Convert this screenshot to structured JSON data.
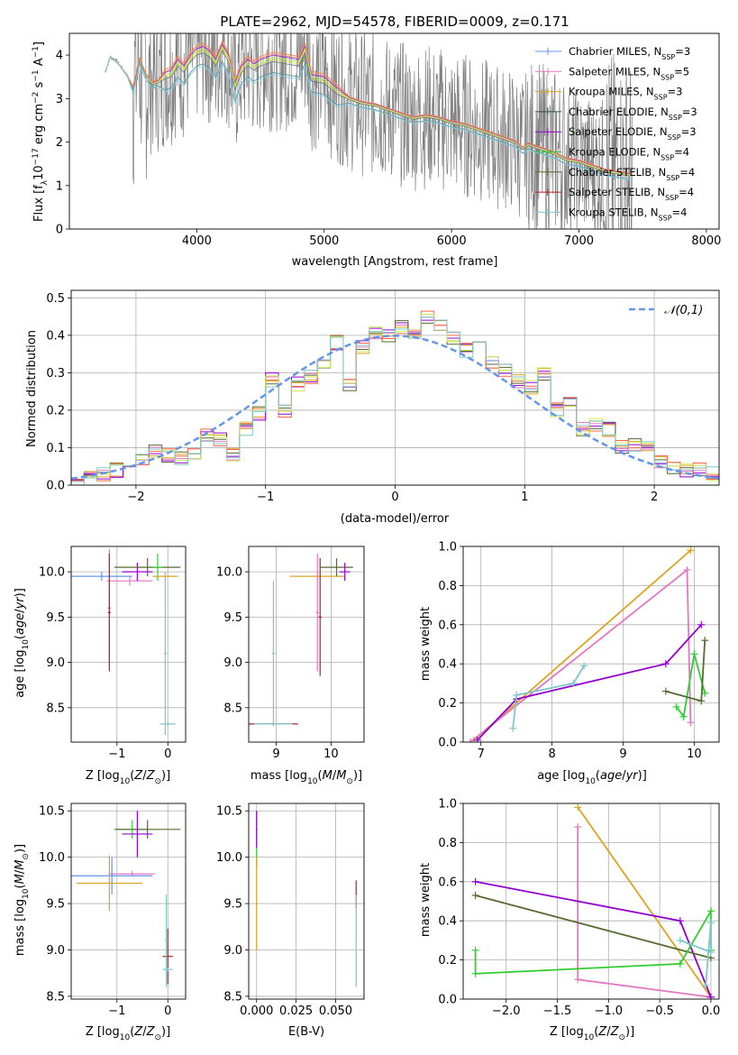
{
  "figure_title": "PLATE=2962, MJD=54578, FIBERID=0009, z=0.171",
  "colors": {
    "data": "#7f7f7f",
    "gauss": "#6495ed",
    "series": [
      "#6495ed",
      "#e377c2",
      "#daa520",
      "#2f4f4f",
      "#9400d3",
      "#32cd32",
      "#556b2f",
      "#b22222",
      "#7fc7c7"
    ]
  },
  "chart_data": [
    {
      "id": "spectrum",
      "type": "line",
      "title": "PLATE=2962, MJD=54578, FIBERID=0009, z=0.171",
      "xlabel": "wavelength [Angstrom, rest frame]",
      "ylabel": "Flux [f_λ 10^-17 erg cm^-2 s^-1 A^-1]",
      "xlim": [
        3000,
        8100
      ],
      "ylim": [
        0,
        4.5
      ],
      "xticks": [
        4000,
        5000,
        6000,
        7000,
        8000
      ],
      "yticks": [
        0,
        1,
        2,
        3,
        4
      ],
      "grid": false,
      "legend_position": "top-right",
      "legend": [
        "Chabrier MILES, N_SSP=3",
        "Salpeter MILES, N_SSP=5",
        "Kroupa MILES, N_SSP=3",
        "Chabrier ELODIE, N_SSP=3",
        "Salpeter ELODIE, N_SSP=3",
        "Kroupa ELODIE, N_SSP=4",
        "Chabrier STELIB, N_SSP=4",
        "Salpeter STELIB, N_SSP=4",
        "Kroupa STELIB, N_SSP=4"
      ],
      "data_range": [
        3280,
        7420
      ],
      "model_curve": {
        "x": [
          3280,
          3320,
          3360,
          3400,
          3450,
          3500,
          3550,
          3600,
          3650,
          3700,
          3750,
          3800,
          3850,
          3900,
          3950,
          4000,
          4050,
          4100,
          4150,
          4200,
          4250,
          4300,
          4350,
          4400,
          4450,
          4500,
          4600,
          4700,
          4800,
          4850,
          4900,
          5000,
          5100,
          5200,
          5300,
          5400,
          5500,
          5600,
          5700,
          5800,
          5900,
          6000,
          6100,
          6200,
          6300,
          6400,
          6500,
          6560,
          6600,
          6700,
          6800,
          6900,
          7000,
          7100,
          7200,
          7300,
          7400
        ],
        "y": [
          3.6,
          3.95,
          3.9,
          3.75,
          3.55,
          3.25,
          3.9,
          3.55,
          3.35,
          3.4,
          3.55,
          3.6,
          3.85,
          3.7,
          3.95,
          4.1,
          4.15,
          4.05,
          3.85,
          4.2,
          3.95,
          3.3,
          3.7,
          3.85,
          3.75,
          3.85,
          3.95,
          3.9,
          3.85,
          4.15,
          3.5,
          3.45,
          3.2,
          3.0,
          2.9,
          2.85,
          2.75,
          2.65,
          2.55,
          2.6,
          2.55,
          2.45,
          2.4,
          2.3,
          2.2,
          2.1,
          2.0,
          1.85,
          1.95,
          1.85,
          1.75,
          1.6,
          1.55,
          1.45,
          1.35,
          1.3,
          1.25
        ]
      }
    },
    {
      "id": "residuals",
      "type": "line",
      "xlabel": "(data-model)/error",
      "ylabel": "Normed distribution",
      "xlim": [
        -2.5,
        2.5
      ],
      "ylim": [
        0,
        0.52
      ],
      "xticks": [
        -2,
        -1,
        0,
        1,
        2
      ],
      "yticks": [
        0.0,
        0.1,
        0.2,
        0.3,
        0.4,
        0.5
      ],
      "grid": true,
      "legend_position": "top-right",
      "legend": [
        "𝒩(0,1)"
      ],
      "bin_edges": [
        -2.5,
        -2.4,
        -2.3,
        -2.2,
        -2.1,
        -2.0,
        -1.9,
        -1.8,
        -1.7,
        -1.6,
        -1.5,
        -1.4,
        -1.3,
        -1.2,
        -1.1,
        -1.0,
        -0.9,
        -0.8,
        -0.7,
        -0.6,
        -0.5,
        -0.4,
        -0.3,
        -0.2,
        -0.1,
        0.0,
        0.1,
        0.2,
        0.3,
        0.4,
        0.5,
        0.6,
        0.7,
        0.8,
        0.9,
        1.0,
        1.1,
        1.2,
        1.3,
        1.4,
        1.5,
        1.6,
        1.7,
        1.8,
        1.9,
        2.0,
        2.1,
        2.2,
        2.3,
        2.4,
        2.5
      ],
      "hist_values": [
        0.01,
        0.02,
        0.03,
        0.04,
        0.06,
        0.07,
        0.09,
        0.08,
        0.07,
        0.09,
        0.13,
        0.12,
        0.08,
        0.15,
        0.19,
        0.28,
        0.2,
        0.27,
        0.29,
        0.32,
        0.38,
        0.27,
        0.37,
        0.41,
        0.4,
        0.42,
        0.41,
        0.45,
        0.43,
        0.39,
        0.36,
        0.4,
        0.33,
        0.31,
        0.28,
        0.26,
        0.3,
        0.2,
        0.22,
        0.15,
        0.16,
        0.15,
        0.1,
        0.11,
        0.1,
        0.06,
        0.05,
        0.04,
        0.04,
        0.03
      ]
    },
    {
      "id": "age-vs-Z",
      "type": "scatter",
      "xlabel": "Z [log10(Z/Z⊙)]",
      "ylabel": "age [log10(age/yr)]",
      "xlim": [
        -1.9,
        0.35
      ],
      "ylim": [
        8.12,
        10.28
      ],
      "xticks": [
        -1,
        0
      ],
      "yticks": [
        8.5,
        9.0,
        9.5,
        10.0
      ],
      "grid": true,
      "points": [
        {
          "x": -1.3,
          "y": 9.95,
          "xerr": 0.6,
          "yerr": 0.05,
          "c": 0
        },
        {
          "x": -0.75,
          "y": 9.9,
          "xerr": 0.45,
          "yerr": 0.05,
          "c": 1
        },
        {
          "x": -0.6,
          "y": 10.0,
          "xerr": 0.3,
          "yerr": 0.1,
          "c": 4
        },
        {
          "x": -0.4,
          "y": 10.05,
          "xerr": 0.65,
          "yerr": 0.1,
          "c": 6
        },
        {
          "x": -0.2,
          "y": 10.05,
          "xerr": 0.1,
          "yerr": 0.15,
          "c": 5
        },
        {
          "x": -1.15,
          "y": 9.6,
          "xerr": 0.03,
          "yerr": 0.65,
          "c": 1
        },
        {
          "x": -1.15,
          "y": 9.55,
          "xerr": 0.03,
          "yerr": 0.65,
          "c": 7
        },
        {
          "x": -0.05,
          "y": 9.95,
          "xerr": 0.25,
          "yerr": 0.05,
          "c": 2
        },
        {
          "x": -0.05,
          "y": 9.1,
          "xerr": 0.03,
          "yerr": 0.9,
          "c": 8
        },
        {
          "x": 0.0,
          "y": 8.32,
          "xerr": 0.15,
          "yerr": 0.02,
          "c": 8
        }
      ]
    },
    {
      "id": "age-vs-mass",
      "type": "scatter",
      "xlabel": "mass [log10(M/M⊙)]",
      "ylabel": "",
      "xlim": [
        8.5,
        10.6
      ],
      "ylim": [
        8.12,
        10.28
      ],
      "xticks": [
        9,
        10
      ],
      "yticks": [
        8.5,
        9.0,
        9.5,
        10.0
      ],
      "grid": true,
      "points": [
        {
          "x": 9.75,
          "y": 9.95,
          "xerr": 0.5,
          "yerr": 0.05,
          "c": 2
        },
        {
          "x": 10.1,
          "y": 10.05,
          "xerr": 0.3,
          "yerr": 0.1,
          "c": 6
        },
        {
          "x": 10.25,
          "y": 10.0,
          "xerr": 0.1,
          "yerr": 0.1,
          "c": 4
        },
        {
          "x": 9.75,
          "y": 9.55,
          "xerr": 0.03,
          "yerr": 0.65,
          "c": 1
        },
        {
          "x": 9.8,
          "y": 9.5,
          "xerr": 0.03,
          "yerr": 0.65,
          "c": 7
        },
        {
          "x": 8.95,
          "y": 8.32,
          "xerr": 0.45,
          "yerr": 0.02,
          "c": 7
        },
        {
          "x": 8.95,
          "y": 9.1,
          "xerr": 0.03,
          "yerr": 0.8,
          "c": 8
        },
        {
          "x": 8.95,
          "y": 8.32,
          "xerr": 0.35,
          "yerr": 0.02,
          "c": 8
        }
      ]
    },
    {
      "id": "mass-weight-vs-age",
      "type": "line",
      "xlabel": "age [log10(age/yr)]",
      "ylabel": "mass weight",
      "xlim": [
        6.75,
        10.35
      ],
      "ylim": [
        0,
        1.0
      ],
      "xticks": [
        7,
        8,
        9,
        10
      ],
      "yticks": [
        0.0,
        0.2,
        0.4,
        0.6,
        0.8,
        1.0
      ],
      "grid": true,
      "series": [
        {
          "c": 2,
          "x": [
            6.9,
            9.95
          ],
          "y": [
            0.01,
            0.98
          ]
        },
        {
          "c": 1,
          "x": [
            6.85,
            9.9,
            9.95
          ],
          "y": [
            0.0,
            0.88,
            0.1
          ]
        },
        {
          "c": 4,
          "x": [
            6.95,
            7.5,
            9.6,
            10.1
          ],
          "y": [
            0.01,
            0.22,
            0.4,
            0.6
          ]
        },
        {
          "c": 5,
          "x": [
            9.75,
            9.85,
            10.0,
            10.15
          ],
          "y": [
            0.18,
            0.13,
            0.45,
            0.25
          ]
        },
        {
          "c": 6,
          "x": [
            9.6,
            10.1,
            10.15
          ],
          "y": [
            0.26,
            0.21,
            0.52
          ]
        },
        {
          "c": 8,
          "x": [
            7.45,
            7.5,
            8.3,
            8.45
          ],
          "y": [
            0.07,
            0.24,
            0.3,
            0.39
          ]
        }
      ]
    },
    {
      "id": "mass-vs-Z",
      "type": "scatter",
      "xlabel": "Z [log10(Z/Z⊙)]",
      "ylabel": "mass [log10(M/M⊙)]",
      "xlim": [
        -1.9,
        0.35
      ],
      "ylim": [
        8.47,
        10.58
      ],
      "xticks": [
        -1,
        0
      ],
      "yticks": [
        8.5,
        9.0,
        9.5,
        10.0,
        10.5
      ],
      "grid": true,
      "points": [
        {
          "x": -0.7,
          "y": 10.3,
          "xerr": 0.3,
          "yerr": 0.1,
          "c": 5
        },
        {
          "x": -0.4,
          "y": 10.3,
          "xerr": 0.65,
          "yerr": 0.1,
          "c": 6
        },
        {
          "x": -0.6,
          "y": 10.25,
          "xerr": 0.3,
          "yerr": 0.25,
          "c": 4
        },
        {
          "x": -0.7,
          "y": 9.82,
          "xerr": 0.45,
          "yerr": 0.03,
          "c": 1
        },
        {
          "x": -1.1,
          "y": 9.8,
          "xerr": 0.8,
          "yerr": 0.2,
          "c": 0
        },
        {
          "x": -1.15,
          "y": 9.72,
          "xerr": 0.65,
          "yerr": 0.3,
          "c": 2
        },
        {
          "x": 0.0,
          "y": 8.93,
          "xerr": 0.1,
          "yerr": 0.3,
          "c": 7
        },
        {
          "x": -0.03,
          "y": 9.1,
          "xerr": 0.03,
          "yerr": 0.5,
          "c": 8
        },
        {
          "x": 0.0,
          "y": 8.79,
          "xerr": 0.1,
          "yerr": 0.02,
          "c": 8
        }
      ]
    },
    {
      "id": "mass-vs-EBV",
      "type": "scatter",
      "xlabel": "E(B-V)",
      "ylabel": "",
      "xlim": [
        -0.005,
        0.068
      ],
      "ylim": [
        8.47,
        10.58
      ],
      "xticks": [
        0.0,
        0.025,
        0.05
      ],
      "xticklabels": [
        "0.000",
        "0.025",
        "0.050"
      ],
      "yticks": [
        8.5,
        9.0,
        9.5,
        10.0,
        10.5
      ],
      "grid": true,
      "points": [
        {
          "x": 0.0,
          "y": 10.2,
          "xerr": 0.0005,
          "yerr": 0.3,
          "c": 5
        },
        {
          "x": 0.0,
          "y": 10.3,
          "xerr": 0.0005,
          "yerr": 0.2,
          "c": 4
        },
        {
          "x": 0.0,
          "y": 9.5,
          "xerr": 0.0005,
          "yerr": 0.5,
          "c": 2
        },
        {
          "x": 0.063,
          "y": 9.6,
          "xerr": 0.0005,
          "yerr": 0.15,
          "c": 7
        },
        {
          "x": 0.063,
          "y": 9.1,
          "xerr": 0.0005,
          "yerr": 0.5,
          "c": 8
        }
      ]
    },
    {
      "id": "mass-weight-vs-Z",
      "type": "line",
      "xlabel": "Z [log10(Z/Z⊙)]",
      "ylabel": "mass weight",
      "xlim": [
        -2.42,
        0.08
      ],
      "ylim": [
        0,
        1.0
      ],
      "xticks": [
        -2.0,
        -1.5,
        -1.0,
        -0.5,
        0.0
      ],
      "xticklabels": [
        "−2.0",
        "−1.5",
        "−1.0",
        "−0.5",
        "0.0"
      ],
      "yticks": [
        0.0,
        0.2,
        0.4,
        0.6,
        0.8,
        1.0
      ],
      "grid": true,
      "series": [
        {
          "c": 2,
          "x": [
            -1.3,
            0.0
          ],
          "y": [
            0.98,
            0.01
          ]
        },
        {
          "c": 1,
          "x": [
            -1.3,
            -1.3,
            0.0
          ],
          "y": [
            0.88,
            0.1,
            0.01
          ]
        },
        {
          "c": 4,
          "x": [
            -2.3,
            -0.3,
            0.0
          ],
          "y": [
            0.6,
            0.4,
            0.01
          ]
        },
        {
          "c": 6,
          "x": [
            -2.3,
            0.0
          ],
          "y": [
            0.53,
            0.21
          ]
        },
        {
          "c": 5,
          "x": [
            -2.3,
            -2.3,
            -0.3,
            0.0,
            0.0
          ],
          "y": [
            0.25,
            0.13,
            0.18,
            0.45,
            0.25
          ]
        },
        {
          "c": 8,
          "x": [
            -0.3,
            0.0,
            0.0,
            -0.05
          ],
          "y": [
            0.3,
            0.24,
            0.39,
            0.07
          ]
        }
      ]
    }
  ]
}
